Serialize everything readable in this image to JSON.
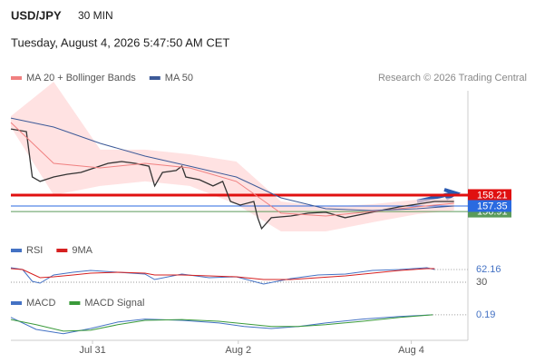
{
  "header": {
    "symbol": "USD/JPY",
    "interval": "30 MIN",
    "datetime": "Tuesday, August 4, 2026 5:47:50 AM CET",
    "credit": "Research © 2026 Trading Central"
  },
  "chart_data": [
    {
      "type": "line",
      "xlim": [
        0,
        230
      ],
      "ylim": [
        154.5,
        168
      ],
      "color": "#333333",
      "x": [
        0,
        8,
        11,
        15,
        22,
        29,
        36,
        43,
        50,
        57,
        64,
        71,
        74,
        78,
        85,
        88,
        90,
        97,
        104,
        109,
        113,
        118,
        125,
        127,
        129,
        134,
        144,
        153,
        162,
        172,
        181,
        190,
        200,
        209,
        218,
        228
      ],
      "values": [
        163.44,
        163.23,
        159.64,
        159.29,
        159.64,
        159.86,
        160.0,
        160.36,
        160.72,
        160.86,
        160.72,
        160.5,
        158.93,
        160.0,
        160.15,
        160.5,
        159.64,
        159.43,
        158.93,
        159.29,
        157.71,
        157.42,
        157.71,
        156.42,
        155.56,
        156.42,
        156.56,
        156.78,
        156.85,
        156.42,
        156.7,
        156.99,
        157.28,
        157.49,
        157.71,
        157.71
      ],
      "series": [
        {
          "name": "MA 20 + Bollinger Bands",
          "color": "#f08080",
          "band_color": "#ffd6d6",
          "x": [
            0,
            22,
            46,
            69,
            92,
            116,
            139,
            162,
            186,
            209,
            228
          ],
          "values": [
            163.95,
            160.72,
            160.36,
            160.72,
            160.36,
            159.29,
            156.78,
            156.56,
            156.92,
            157.28,
            157.56
          ],
          "upper": [
            164.45,
            167.17,
            161.8,
            161.8,
            161.44,
            160.86,
            157.71,
            157.28,
            157.49,
            157.85,
            157.99
          ],
          "lower": [
            163.59,
            158.21,
            158.93,
            159.29,
            158.93,
            157.49,
            155.34,
            155.34,
            156.06,
            156.7,
            156.99
          ]
        },
        {
          "name": "MA 50",
          "color": "#3d5a98",
          "x": [
            0,
            22,
            46,
            69,
            92,
            116,
            139,
            162,
            186,
            209,
            228
          ],
          "values": [
            164.3,
            163.59,
            162.3,
            161.29,
            160.5,
            159.64,
            157.99,
            157.13,
            156.99,
            157.13,
            157.35
          ]
        }
      ],
      "levels": [
        {
          "value": 158.21,
          "color": "#e01010"
        },
        {
          "value": 156.91,
          "color": "#5a9a5a"
        },
        {
          "value": 157.35,
          "color": "#2a6ae0"
        }
      ]
    },
    {
      "type": "line",
      "xlim": [
        0,
        230
      ],
      "ylim": [
        10,
        90
      ],
      "yticks": [
        30
      ],
      "series": [
        {
          "name": "RSI",
          "color": "#4472c4",
          "x": [
            0,
            6,
            11,
            15,
            22,
            32,
            41,
            55,
            69,
            74,
            88,
            102,
            116,
            130,
            144,
            158,
            172,
            186,
            200,
            214,
            218
          ],
          "values": [
            66.8,
            62.2,
            32.3,
            27.7,
            48.4,
            55.3,
            59.9,
            55.3,
            50.7,
            36.9,
            50.7,
            41.5,
            43.8,
            25.4,
            39.2,
            48.4,
            50.7,
            59.9,
            62.2,
            66.8,
            62.16
          ]
        },
        {
          "name": "9MA",
          "color": "#d62020",
          "x": [
            0,
            6,
            11,
            15,
            22,
            32,
            41,
            55,
            69,
            74,
            88,
            102,
            116,
            130,
            144,
            158,
            172,
            186,
            200,
            214,
            218
          ],
          "values": [
            64.5,
            62.2,
            50.7,
            41.5,
            43.8,
            48.4,
            53.0,
            55.3,
            53.0,
            48.4,
            48.4,
            46.1,
            43.8,
            36.9,
            36.9,
            41.5,
            46.1,
            53.0,
            59.9,
            64.5,
            64.5
          ]
        }
      ]
    },
    {
      "type": "line",
      "xlim": [
        0,
        230
      ],
      "ylim": [
        -0.34,
        0.44
      ],
      "xticks": [
        {
          "value": 42,
          "label": "Jul 31"
        },
        {
          "value": 117,
          "label": "Aug 2"
        },
        {
          "value": 206,
          "label": "Aug 4"
        }
      ],
      "series": [
        {
          "name": "MACD",
          "color": "#4472c4",
          "x": [
            0,
            13,
            27,
            41,
            55,
            69,
            88,
            107,
            120,
            134,
            148,
            162,
            181,
            200,
            217
          ],
          "values": [
            0.13,
            -0.15,
            -0.25,
            -0.13,
            0.02,
            0.09,
            0.06,
            0,
            -0.08,
            -0.13,
            -0.08,
            0,
            0.09,
            0.15,
            0.19
          ]
        },
        {
          "name": "MACD Signal",
          "color": "#3a9a3a",
          "x": [
            0,
            13,
            27,
            41,
            55,
            69,
            88,
            107,
            120,
            134,
            148,
            162,
            181,
            200,
            217
          ],
          "values": [
            0.08,
            -0.04,
            -0.19,
            -0.17,
            -0.04,
            0.06,
            0.08,
            0.04,
            -0.02,
            -0.08,
            -0.08,
            -0.04,
            0.04,
            0.13,
            0.19
          ]
        }
      ]
    }
  ]
}
